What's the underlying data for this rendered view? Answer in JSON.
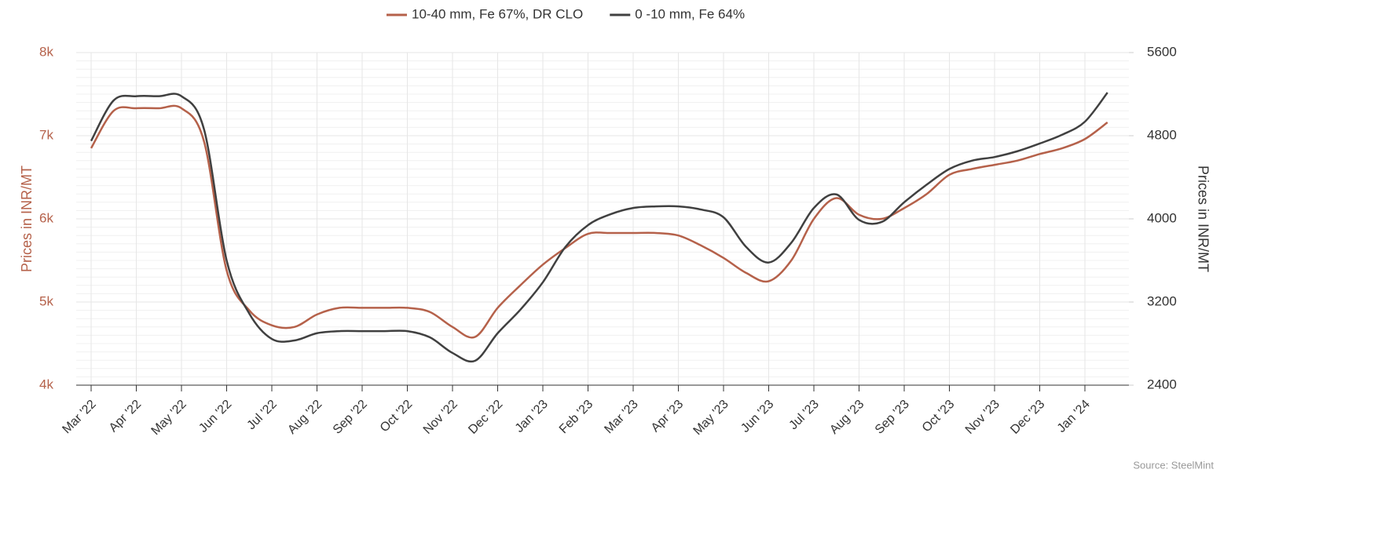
{
  "chart_data": {
    "type": "line",
    "categories": [
      "Mar '22",
      null,
      "Apr '22",
      null,
      "May '22",
      null,
      "Jun '22",
      null,
      "Jul '22",
      null,
      "Aug '22",
      null,
      "Sep '22",
      null,
      "Oct '22",
      null,
      "Nov '22",
      null,
      "Dec '22",
      null,
      "Jan '23",
      null,
      "Feb '23",
      null,
      "Mar '23",
      null,
      "Apr '23",
      null,
      "May '23",
      null,
      "Jun '23",
      null,
      "Jul '23",
      null,
      "Aug '23",
      null,
      "Sep '23",
      null,
      "Oct '23",
      null,
      "Nov '23",
      null,
      "Dec '23",
      null,
      "Jan '24",
      null
    ],
    "series": [
      {
        "name": "10-40 mm, Fe 67%, DR CLO",
        "color": "#b5614a",
        "axis": "y",
        "values": [
          6850,
          7300,
          7330,
          7330,
          7330,
          6930,
          5380,
          4900,
          4720,
          4700,
          4850,
          4930,
          4930,
          4930,
          4930,
          4880,
          4700,
          4580,
          4930,
          5200,
          5450,
          5650,
          5820,
          5830,
          5830,
          5830,
          5800,
          5680,
          5530,
          5350,
          5250,
          5500,
          6000,
          6250,
          6050,
          6000,
          6130,
          6300,
          6530,
          6600,
          6650,
          6700,
          6780,
          6850,
          6960,
          7160
        ]
      },
      {
        "name": "0 -10 mm, Fe 64%",
        "color": "#404040",
        "axis": "y2",
        "values": [
          4750,
          5140,
          5180,
          5180,
          5180,
          4860,
          3600,
          3090,
          2845,
          2830,
          2900,
          2920,
          2920,
          2920,
          2920,
          2860,
          2710,
          2635,
          2900,
          3125,
          3390,
          3730,
          3940,
          4045,
          4105,
          4120,
          4120,
          4090,
          4015,
          3730,
          3580,
          3770,
          4105,
          4235,
          3990,
          3970,
          4160,
          4330,
          4480,
          4560,
          4595,
          4650,
          4725,
          4810,
          4935,
          5215
        ]
      }
    ],
    "ylabel": "Prices in INR/MT",
    "y2label": "Prices in INR/MT",
    "ylim": [
      4000,
      8000
    ],
    "yticks": [
      {
        "value": 4000,
        "label": "4k"
      },
      {
        "value": 5000,
        "label": "5k"
      },
      {
        "value": 6000,
        "label": "6k"
      },
      {
        "value": 7000,
        "label": "7k"
      },
      {
        "value": 8000,
        "label": "8k"
      }
    ],
    "y2lim": [
      2400,
      5600
    ],
    "y2ticks": [
      2400,
      3200,
      4000,
      4800,
      5600
    ],
    "grid": true,
    "legend": "top",
    "source": "Source: SteelMint"
  }
}
